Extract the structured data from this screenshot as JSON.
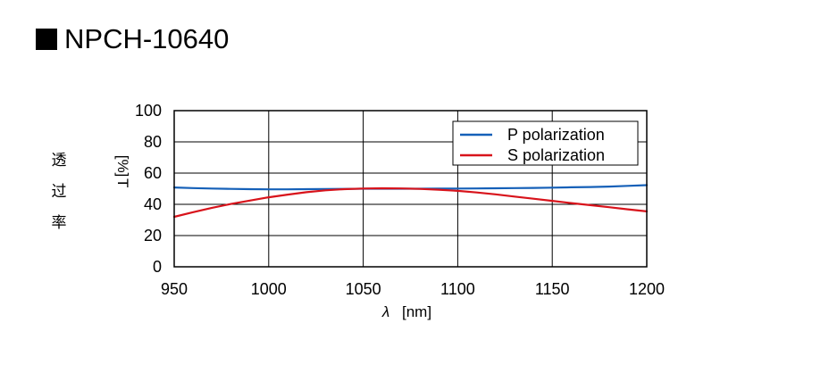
{
  "title": "NPCH-10640",
  "side_label": [
    "透",
    "过",
    "率"
  ],
  "chart_data": {
    "type": "line",
    "title": "NPCH-10640",
    "xlabel_symbol": "λ",
    "xlabel": "[nm]",
    "ylabel_symbol": "T",
    "ylabel": "[%]",
    "xlim": [
      950,
      1200
    ],
    "ylim": [
      0,
      100
    ],
    "xticks": [
      950,
      1000,
      1050,
      1100,
      1150,
      1200
    ],
    "yticks": [
      0,
      20,
      40,
      60,
      80,
      100
    ],
    "grid": true,
    "legend_position": "top-right",
    "series": [
      {
        "name": "P polarization",
        "color": "#1560b8",
        "x": [
          950,
          960,
          970,
          980,
          990,
          1000,
          1010,
          1020,
          1030,
          1040,
          1050,
          1060,
          1070,
          1080,
          1090,
          1100,
          1110,
          1120,
          1130,
          1140,
          1150,
          1160,
          1170,
          1180,
          1190,
          1200
        ],
        "y": [
          50.8,
          50.4,
          50.1,
          49.9,
          49.7,
          49.6,
          49.6,
          49.7,
          49.8,
          49.9,
          50.0,
          50.0,
          50.0,
          50.0,
          50.1,
          50.1,
          50.2,
          50.3,
          50.4,
          50.5,
          50.7,
          50.9,
          51.1,
          51.4,
          51.8,
          52.3
        ]
      },
      {
        "name": "S polarization",
        "color": "#d8131b",
        "x": [
          950,
          960,
          970,
          980,
          990,
          1000,
          1010,
          1020,
          1030,
          1040,
          1050,
          1060,
          1070,
          1080,
          1090,
          1100,
          1110,
          1120,
          1130,
          1140,
          1150,
          1160,
          1170,
          1180,
          1190,
          1200
        ],
        "y": [
          32.0,
          35.0,
          37.8,
          40.2,
          42.4,
          44.5,
          46.2,
          47.8,
          49.0,
          49.7,
          50.1,
          50.3,
          50.2,
          49.9,
          49.4,
          48.6,
          47.6,
          46.4,
          45.0,
          43.6,
          42.2,
          40.8,
          39.5,
          38.2,
          36.8,
          35.5
        ]
      }
    ]
  }
}
